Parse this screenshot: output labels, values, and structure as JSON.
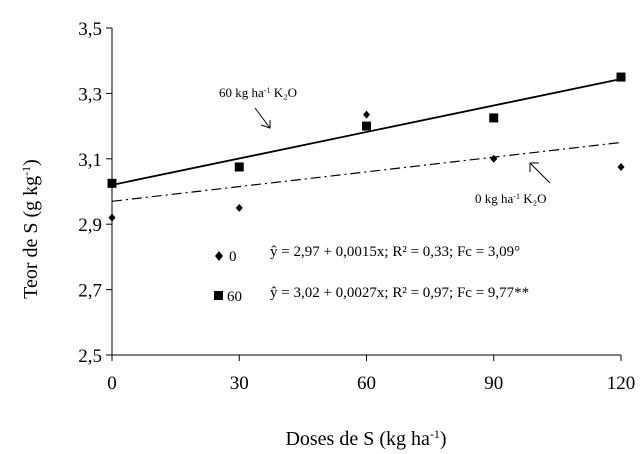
{
  "chart_data": {
    "type": "scatter",
    "xlabel": "Doses de S (kg ha",
    "xlabel_sup": "-1",
    "xlabel_end": ")",
    "ylabel": "Teor de S (g kg",
    "ylabel_sup": "-1",
    "ylabel_end": ")",
    "xlim": [
      0,
      120
    ],
    "ylim": [
      2.5,
      3.5
    ],
    "x_ticks": [
      0,
      30,
      60,
      90,
      120
    ],
    "x_tick_labels": [
      "0",
      "30",
      "60",
      "90",
      "120"
    ],
    "y_ticks": [
      2.5,
      2.7,
      2.9,
      3.1,
      3.3,
      3.5
    ],
    "y_tick_labels": [
      "2,5",
      "2,7",
      "2,9",
      "3,1",
      "3,3",
      "3,5"
    ],
    "grid": false,
    "series": [
      {
        "name": "0",
        "marker": "diamond",
        "line_style": "dash-dot",
        "x": [
          0,
          30,
          60,
          90,
          120
        ],
        "y": [
          2.92,
          2.95,
          3.235,
          3.1,
          3.075
        ],
        "fit": {
          "intercept": 2.97,
          "slope": 0.0015
        },
        "equation": "ŷ = 2,97 + 0,0015x; R² = 0,33; Fc = 3,09°",
        "annotation": {
          "pre": "0 kg ha",
          "sup": "-1",
          "post": " K₂O"
        }
      },
      {
        "name": "60",
        "marker": "square",
        "line_style": "solid",
        "x": [
          0,
          30,
          60,
          90,
          120
        ],
        "y": [
          3.025,
          3.075,
          3.2,
          3.225,
          3.35
        ],
        "fit": {
          "intercept": 3.02,
          "slope": 0.0027
        },
        "equation": "ŷ = 3,02 + 0,0027x; R² = 0,97; Fc = 9,77**",
        "annotation": {
          "pre": "60 kg ha",
          "sup": "-1",
          "post": " K₂O"
        }
      }
    ]
  }
}
